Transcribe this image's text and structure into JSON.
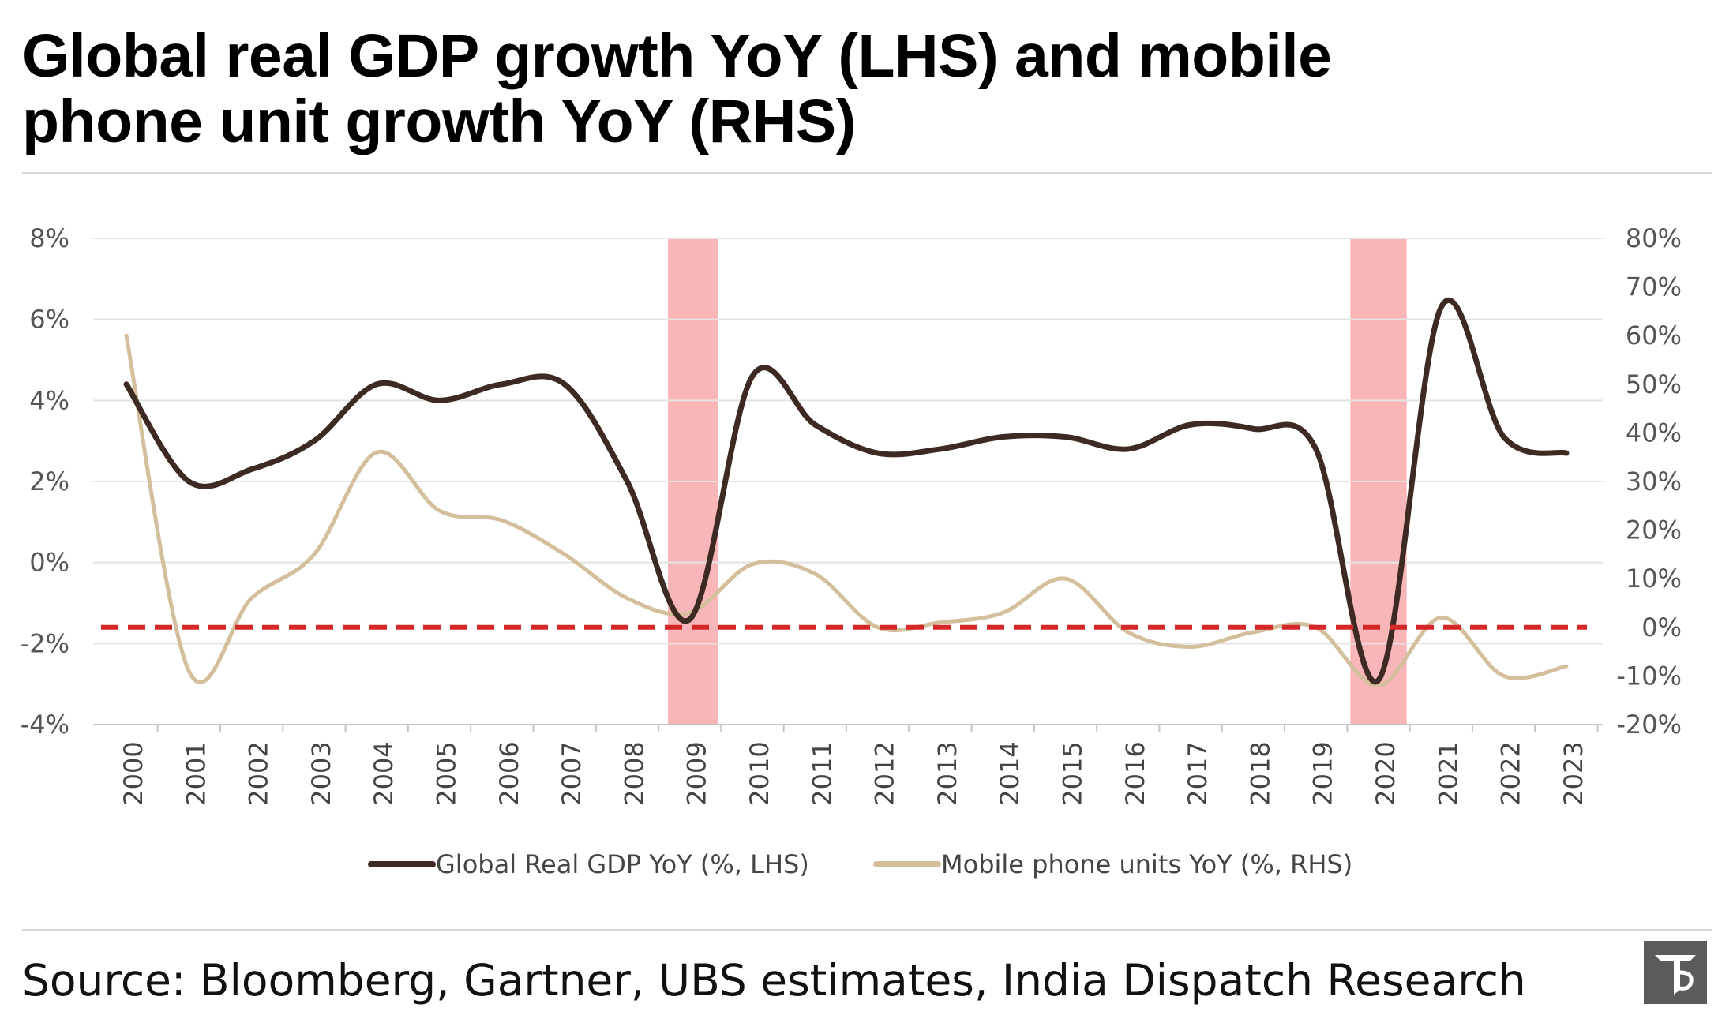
{
  "title_lines": [
    "Global real GDP growth YoY (LHS) and mobile",
    "phone unit growth YoY (RHS)"
  ],
  "source": "Source: Bloomberg, Gartner, UBS estimates, India Dispatch Research",
  "chart_data": {
    "type": "line",
    "x": [
      "2000",
      "2001",
      "2002",
      "2003",
      "2004",
      "2005",
      "2006",
      "2007",
      "2008",
      "2009",
      "2010",
      "2011",
      "2012",
      "2013",
      "2014",
      "2015",
      "2016",
      "2017",
      "2018",
      "2019",
      "2020",
      "2021",
      "2022",
      "2023"
    ],
    "y_left": {
      "ticks": [
        "8%",
        "6%",
        "4%",
        "2%",
        "0%",
        "-2%",
        "-4%"
      ],
      "ylim": [
        -4,
        8
      ]
    },
    "y_right": {
      "ticks": [
        "80%",
        "70%",
        "60%",
        "50%",
        "40%",
        "30%",
        "20%",
        "10%",
        "0%",
        "-10%",
        "-20%"
      ],
      "ylim": [
        -20,
        80
      ]
    },
    "grid": true,
    "legend_position": "bottom",
    "series": [
      {
        "name": "Global Real GDP YoY (%, LHS)",
        "axis": "left",
        "color": "#3d2a22",
        "values": [
          4.4,
          2.0,
          2.3,
          3.0,
          4.4,
          4.0,
          4.4,
          4.4,
          2.0,
          -1.4,
          4.6,
          3.4,
          2.7,
          2.8,
          3.1,
          3.1,
          2.8,
          3.4,
          3.3,
          2.8,
          -2.9,
          6.3,
          3.1,
          2.7
        ]
      },
      {
        "name": "Mobile phone units YoY (%, RHS)",
        "axis": "right",
        "color": "#d4bf9c",
        "values": [
          60,
          -9,
          6,
          15,
          36,
          24,
          22,
          15,
          6,
          3,
          13,
          11,
          0,
          1,
          3,
          10,
          -1,
          -4,
          -1,
          0,
          -12,
          2,
          -10,
          -8
        ]
      }
    ],
    "recession_bands": [
      {
        "label": "2009",
        "from": 2008.65,
        "to": 2009.45,
        "color": "#f9b6b8"
      },
      {
        "label": "2020",
        "from": 2019.55,
        "to": 2020.45,
        "color": "#f9b6b8"
      }
    ],
    "reference_line": {
      "axis": "right",
      "value": 0,
      "color": "#d62728",
      "style": "dashed"
    }
  }
}
